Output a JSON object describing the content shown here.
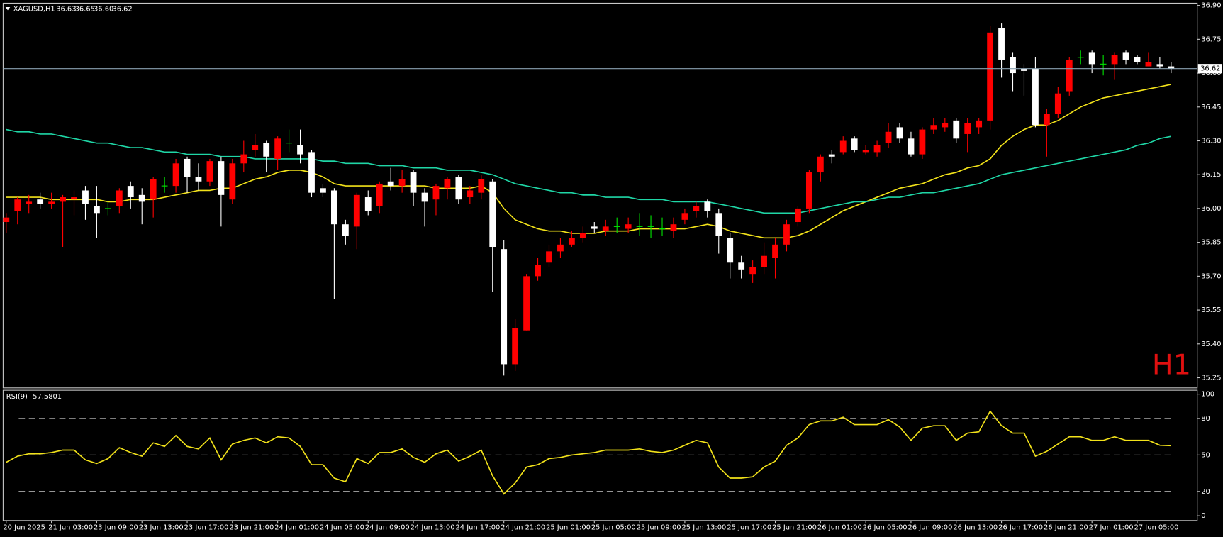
{
  "header": {
    "symbol": "XAGUSD,H1",
    "ohlc": [
      "36.63",
      "36.65",
      "36.60",
      "36.62"
    ]
  },
  "chart_data": [
    {
      "type": "candlestick",
      "watermark": "H1",
      "categories": [
        "20 Jun 2025",
        null,
        null,
        null,
        "21 Jun 03:00",
        null,
        null,
        null,
        "23 Jun 09:00",
        null,
        null,
        null,
        "23 Jun 13:00",
        null,
        null,
        null,
        "23 Jun 17:00",
        null,
        null,
        null,
        "23 Jun 21:00",
        null,
        null,
        null,
        "24 Jun 01:00",
        null,
        null,
        null,
        "24 Jun 05:00",
        null,
        null,
        null,
        "24 Jun 09:00",
        null,
        null,
        null,
        "24 Jun 13:00",
        null,
        null,
        null,
        "24 Jun 17:00",
        null,
        null,
        null,
        "24 Jun 21:00",
        null,
        null,
        null,
        "25 Jun 01:00",
        null,
        null,
        null,
        "25 Jun 05:00",
        null,
        null,
        null,
        "25 Jun 09:00",
        null,
        null,
        null,
        "25 Jun 13:00",
        null,
        null,
        null,
        "25 Jun 17:00",
        null,
        null,
        null,
        "25 Jun 21:00",
        null,
        null,
        null,
        "26 Jun 01:00",
        null,
        null,
        null,
        "26 Jun 05:00",
        null,
        null,
        null,
        "26 Jun 09:00",
        null,
        null,
        null,
        "26 Jun 13:00",
        null,
        null,
        null,
        "26 Jun 17:00",
        null,
        null,
        null,
        "26 Jun 21:00",
        null,
        null,
        null,
        "27 Jun 01:00",
        null,
        null,
        null,
        "27 Jun 05:00",
        null,
        null,
        null
      ],
      "open": [
        35.94,
        35.99,
        36.02,
        36.04,
        36.02,
        36.03,
        36.04,
        36.08,
        36.01,
        36.0,
        36.01,
        36.1,
        36.06,
        36.04,
        36.1,
        36.1,
        36.22,
        36.14,
        36.12,
        36.21,
        36.04,
        36.2,
        36.26,
        36.29,
        36.22,
        36.29,
        36.28,
        36.25,
        36.09,
        36.08,
        35.93,
        35.92,
        36.05,
        36.01,
        36.12,
        36.1,
        36.16,
        36.07,
        36.04,
        36.09,
        36.14,
        36.05,
        36.07,
        36.12,
        35.82,
        35.31,
        35.46,
        35.7,
        35.76,
        35.81,
        35.84,
        35.87,
        35.92,
        35.9,
        35.92,
        35.91,
        35.92,
        35.92,
        35.91,
        35.9,
        35.95,
        35.99,
        36.03,
        35.98,
        35.87,
        35.76,
        35.71,
        35.74,
        35.78,
        35.84,
        35.94,
        36.0,
        36.16,
        36.24,
        36.25,
        36.31,
        36.25,
        36.25,
        36.29,
        36.36,
        36.31,
        36.24,
        36.35,
        36.36,
        36.39,
        36.33,
        36.36,
        36.39,
        36.8,
        36.67,
        36.62,
        36.62,
        36.37,
        36.42,
        36.52,
        36.67,
        36.69,
        36.64,
        36.64,
        36.69,
        36.67,
        36.63,
        36.64,
        36.63
      ],
      "high": [
        35.98,
        36.05,
        36.06,
        36.07,
        36.07,
        36.06,
        36.08,
        36.1,
        36.1,
        36.03,
        36.09,
        36.12,
        36.09,
        36.14,
        36.14,
        36.22,
        36.23,
        36.2,
        36.22,
        36.23,
        36.22,
        36.3,
        36.33,
        36.3,
        36.32,
        36.35,
        36.35,
        36.26,
        36.11,
        36.09,
        35.95,
        36.07,
        36.08,
        36.12,
        36.18,
        36.17,
        36.17,
        36.09,
        36.11,
        36.14,
        36.15,
        36.1,
        36.15,
        36.13,
        35.86,
        35.51,
        35.71,
        35.78,
        35.84,
        35.87,
        35.9,
        35.92,
        35.94,
        35.95,
        35.96,
        35.96,
        35.98,
        35.97,
        35.96,
        35.96,
        36.0,
        36.03,
        36.04,
        36.0,
        35.89,
        35.79,
        35.77,
        35.85,
        35.87,
        35.95,
        36.01,
        36.17,
        36.24,
        36.26,
        36.32,
        36.32,
        36.28,
        36.3,
        36.38,
        36.38,
        36.34,
        36.36,
        36.4,
        36.4,
        36.4,
        36.4,
        36.4,
        36.81,
        36.82,
        36.69,
        36.64,
        36.67,
        36.44,
        36.54,
        36.67,
        36.7,
        36.7,
        36.68,
        36.69,
        36.7,
        36.68,
        36.69,
        36.67,
        36.65
      ],
      "low": [
        35.89,
        35.93,
        35.98,
        36.0,
        36.0,
        35.83,
        35.97,
        35.95,
        35.87,
        35.97,
        35.98,
        36.0,
        35.93,
        35.96,
        36.07,
        36.07,
        36.07,
        36.08,
        36.1,
        35.92,
        36.02,
        36.16,
        36.23,
        36.16,
        36.17,
        36.25,
        36.2,
        36.05,
        36.05,
        35.6,
        35.84,
        35.82,
        35.97,
        35.98,
        36.08,
        36.07,
        36.01,
        35.92,
        35.97,
        36.04,
        36.02,
        36.02,
        36.04,
        35.63,
        35.26,
        35.28,
        35.46,
        35.68,
        35.74,
        35.78,
        35.83,
        35.85,
        35.89,
        35.88,
        35.89,
        35.89,
        35.88,
        35.87,
        35.88,
        35.87,
        35.93,
        35.96,
        35.96,
        35.8,
        35.69,
        35.69,
        35.67,
        35.71,
        35.69,
        35.81,
        35.92,
        35.98,
        36.12,
        36.2,
        36.24,
        36.25,
        36.24,
        36.23,
        36.27,
        36.29,
        36.23,
        36.22,
        36.33,
        36.34,
        36.29,
        36.25,
        36.33,
        36.35,
        36.58,
        36.52,
        36.5,
        36.36,
        36.23,
        36.4,
        36.5,
        36.64,
        36.6,
        36.59,
        36.57,
        36.64,
        36.64,
        36.63,
        36.62,
        36.6
      ],
      "close": [
        35.96,
        36.04,
        36.03,
        36.02,
        36.03,
        36.05,
        36.05,
        36.02,
        35.98,
        36.0,
        36.08,
        36.05,
        36.03,
        36.13,
        36.1,
        36.2,
        36.14,
        36.12,
        36.21,
        36.06,
        36.2,
        36.24,
        36.28,
        36.23,
        36.31,
        36.29,
        36.24,
        36.07,
        36.07,
        35.93,
        35.88,
        36.06,
        35.99,
        36.11,
        36.1,
        36.13,
        36.07,
        36.03,
        36.1,
        36.13,
        36.04,
        36.08,
        36.13,
        35.83,
        35.31,
        35.47,
        35.7,
        35.75,
        35.81,
        35.84,
        35.87,
        35.89,
        35.91,
        35.92,
        35.92,
        35.93,
        35.92,
        35.92,
        35.91,
        35.93,
        35.98,
        36.01,
        35.99,
        35.88,
        35.76,
        35.73,
        35.74,
        35.79,
        35.84,
        35.93,
        36.0,
        36.16,
        36.23,
        36.23,
        36.3,
        36.26,
        36.26,
        36.28,
        36.34,
        36.31,
        36.24,
        36.35,
        36.37,
        36.38,
        36.31,
        36.38,
        36.39,
        36.78,
        36.66,
        36.6,
        36.61,
        36.37,
        36.42,
        36.51,
        36.66,
        36.67,
        36.64,
        36.64,
        36.68,
        36.66,
        36.65,
        36.65,
        36.63,
        36.62
      ],
      "up_color": "#ff0000",
      "down_color": "#ffffff",
      "doji_color": "#00e600",
      "overlays": [
        {
          "color": "#f2e21a",
          "values": [
            36.05,
            36.05,
            36.05,
            36.05,
            36.04,
            36.04,
            36.04,
            36.04,
            36.04,
            36.03,
            36.03,
            36.04,
            36.04,
            36.04,
            36.05,
            36.06,
            36.07,
            36.08,
            36.08,
            36.09,
            36.09,
            36.11,
            36.13,
            36.14,
            36.16,
            36.17,
            36.17,
            36.16,
            36.14,
            36.11,
            36.1,
            36.1,
            36.1,
            36.1,
            36.1,
            36.1,
            36.1,
            36.1,
            36.09,
            36.09,
            36.09,
            36.09,
            36.1,
            36.07,
            36.0,
            35.95,
            35.93,
            35.91,
            35.9,
            35.9,
            35.89,
            35.89,
            35.89,
            35.9,
            35.9,
            35.9,
            35.91,
            35.91,
            35.91,
            35.91,
            35.91,
            35.92,
            35.93,
            35.92,
            35.9,
            35.89,
            35.88,
            35.87,
            35.87,
            35.87,
            35.88,
            35.9,
            35.93,
            35.96,
            35.99,
            36.01,
            36.03,
            36.05,
            36.07,
            36.09,
            36.1,
            36.11,
            36.13,
            36.15,
            36.16,
            36.18,
            36.19,
            36.22,
            36.28,
            36.32,
            36.35,
            36.37,
            36.37,
            36.39,
            36.42,
            36.45,
            36.47,
            36.49,
            36.5,
            36.51,
            36.52,
            36.53,
            36.54,
            36.55
          ]
        },
        {
          "color": "#1fd6a6",
          "values": [
            36.35,
            36.34,
            36.34,
            36.33,
            36.33,
            36.32,
            36.31,
            36.3,
            36.29,
            36.29,
            36.28,
            36.27,
            36.27,
            36.26,
            36.25,
            36.25,
            36.24,
            36.24,
            36.24,
            36.23,
            36.23,
            36.23,
            36.22,
            36.22,
            36.22,
            36.22,
            36.22,
            36.22,
            36.21,
            36.21,
            36.2,
            36.2,
            36.2,
            36.19,
            36.19,
            36.19,
            36.18,
            36.18,
            36.18,
            36.17,
            36.17,
            36.17,
            36.16,
            36.15,
            36.13,
            36.11,
            36.1,
            36.09,
            36.08,
            36.07,
            36.07,
            36.06,
            36.06,
            36.05,
            36.05,
            36.05,
            36.04,
            36.04,
            36.04,
            36.03,
            36.03,
            36.03,
            36.03,
            36.02,
            36.01,
            36.0,
            35.99,
            35.98,
            35.98,
            35.98,
            35.98,
            35.99,
            36.0,
            36.01,
            36.02,
            36.03,
            36.03,
            36.04,
            36.05,
            36.05,
            36.06,
            36.07,
            36.07,
            36.08,
            36.09,
            36.1,
            36.11,
            36.13,
            36.15,
            36.16,
            36.17,
            36.18,
            36.19,
            36.2,
            36.21,
            36.22,
            36.23,
            36.24,
            36.25,
            36.26,
            36.28,
            36.29,
            36.31,
            36.32
          ]
        }
      ],
      "last_price": {
        "value": 36.62,
        "label": "36.62"
      },
      "ylim": [
        35.205,
        36.91
      ],
      "yticks": [
        {
          "value": 36.9,
          "label": "36.90"
        },
        {
          "value": 36.75,
          "label": "36.75"
        },
        {
          "value": 36.6,
          "label": "36.60"
        },
        {
          "value": 36.45,
          "label": "36.45"
        },
        {
          "value": 36.3,
          "label": "36.30"
        },
        {
          "value": 36.15,
          "label": "36.15"
        },
        {
          "value": 36.0,
          "label": "36.00"
        },
        {
          "value": 35.85,
          "label": "35.85"
        },
        {
          "value": 35.7,
          "label": "35.70"
        },
        {
          "value": 35.55,
          "label": "35.55"
        },
        {
          "value": 35.4,
          "label": "35.40"
        },
        {
          "value": 35.25,
          "label": "35.25"
        }
      ]
    },
    {
      "type": "line",
      "title": "RSI(9)",
      "series": [
        {
          "color": "#f2e21a",
          "values": [
            44,
            49,
            51,
            51,
            52,
            54,
            54,
            46,
            43,
            47,
            56,
            52,
            49,
            60,
            57,
            66,
            57,
            55,
            64,
            46,
            59,
            62,
            64,
            60,
            65,
            64,
            57,
            42,
            42,
            31,
            28,
            47,
            43,
            52,
            52,
            55,
            48,
            44,
            51,
            54,
            45,
            49,
            54,
            33,
            18,
            27,
            40,
            42,
            47,
            48,
            50,
            51,
            52,
            54,
            54,
            54,
            55,
            53,
            52,
            54,
            58,
            62,
            60,
            40,
            31,
            31,
            32,
            40,
            45,
            58,
            64,
            75,
            78,
            78,
            81,
            75,
            75,
            75,
            79,
            73,
            62,
            72,
            74,
            74,
            62,
            68,
            69,
            86,
            74,
            68,
            68,
            49,
            53,
            59,
            65,
            65,
            62,
            62,
            65,
            62,
            62,
            62,
            58,
            57.5801
          ]
        }
      ],
      "levels": [
        80,
        50,
        20
      ],
      "ylim": [
        -3.9,
        103.2
      ],
      "yticks": [
        100,
        80,
        50,
        20,
        0
      ]
    }
  ]
}
